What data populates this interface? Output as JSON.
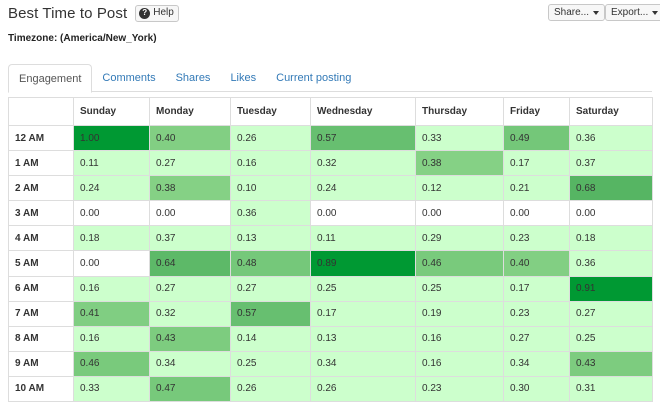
{
  "header": {
    "title": "Best Time to Post",
    "help_label": "Help",
    "help_icon": "question-circle-icon",
    "share_label": "Share...",
    "export_label": "Export..."
  },
  "timezone_label": "Timezone: (America/New_York)",
  "tabs": [
    {
      "label": "Engagement",
      "active": true
    },
    {
      "label": "Comments",
      "active": false
    },
    {
      "label": "Shares",
      "active": false
    },
    {
      "label": "Likes",
      "active": false
    },
    {
      "label": "Current posting",
      "active": false
    }
  ],
  "table": {
    "columns": [
      "Sunday",
      "Monday",
      "Tuesday",
      "Wednesday",
      "Thursday",
      "Friday",
      "Saturday"
    ],
    "rows": [
      {
        "hour": "12 AM",
        "values": [
          "1.00",
          "0.40",
          "0.26",
          "0.57",
          "0.33",
          "0.49",
          "0.36"
        ]
      },
      {
        "hour": "1 AM",
        "values": [
          "0.11",
          "0.27",
          "0.16",
          "0.32",
          "0.38",
          "0.17",
          "0.37"
        ]
      },
      {
        "hour": "2 AM",
        "values": [
          "0.24",
          "0.38",
          "0.10",
          "0.24",
          "0.12",
          "0.21",
          "0.68"
        ]
      },
      {
        "hour": "3 AM",
        "values": [
          "0.00",
          "0.00",
          "0.36",
          "0.00",
          "0.00",
          "0.00",
          "0.00"
        ]
      },
      {
        "hour": "4 AM",
        "values": [
          "0.18",
          "0.37",
          "0.13",
          "0.11",
          "0.29",
          "0.23",
          "0.18"
        ]
      },
      {
        "hour": "5 AM",
        "values": [
          "0.00",
          "0.64",
          "0.48",
          "0.89",
          "0.46",
          "0.40",
          "0.36"
        ]
      },
      {
        "hour": "6 AM",
        "values": [
          "0.16",
          "0.27",
          "0.27",
          "0.25",
          "0.25",
          "0.17",
          "0.91"
        ]
      },
      {
        "hour": "7 AM",
        "values": [
          "0.41",
          "0.32",
          "0.57",
          "0.17",
          "0.19",
          "0.23",
          "0.27"
        ]
      },
      {
        "hour": "8 AM",
        "values": [
          "0.16",
          "0.43",
          "0.14",
          "0.13",
          "0.16",
          "0.27",
          "0.25"
        ]
      },
      {
        "hour": "9 AM",
        "values": [
          "0.46",
          "0.34",
          "0.25",
          "0.34",
          "0.16",
          "0.34",
          "0.43"
        ]
      },
      {
        "hour": "10 AM",
        "values": [
          "0.33",
          "0.47",
          "0.26",
          "0.26",
          "0.23",
          "0.30",
          "0.31"
        ]
      }
    ]
  },
  "colors": {
    "zero": "#ffffff",
    "low": "#ccffcc",
    "mid": "#85d185",
    "high": "#009933",
    "link": "#337ab7"
  }
}
